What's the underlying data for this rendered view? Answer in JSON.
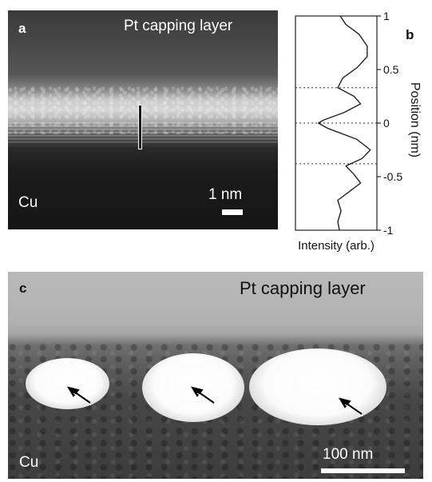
{
  "panel_a": {
    "label": "a",
    "top_text": "Pt capping layer",
    "bottom_text": "Cu",
    "scale_text": "1 nm"
  },
  "panel_b": {
    "label": "b",
    "xlabel": "Intensity (arb.)",
    "ylabel": "Position (nm)",
    "ticks": [
      "1",
      "0.5",
      "0",
      "-0.5",
      "-1"
    ],
    "chart_data": {
      "type": "line",
      "title": "",
      "xlabel": "Intensity (arb.)",
      "ylabel": "Position (nm)",
      "ylim": [
        -1,
        1
      ],
      "xlim": [
        0,
        1
      ],
      "y_ticks": [
        1,
        0.5,
        0,
        -0.5,
        -1
      ],
      "reference_lines_y": [
        0.33,
        0,
        -0.38
      ],
      "points": [
        {
          "y": 1.0,
          "x": 0.55
        },
        {
          "y": 0.92,
          "x": 0.62
        },
        {
          "y": 0.83,
          "x": 0.78
        },
        {
          "y": 0.72,
          "x": 0.88
        },
        {
          "y": 0.62,
          "x": 0.88
        },
        {
          "y": 0.52,
          "x": 0.76
        },
        {
          "y": 0.42,
          "x": 0.58
        },
        {
          "y": 0.33,
          "x": 0.52
        },
        {
          "y": 0.25,
          "x": 0.72
        },
        {
          "y": 0.18,
          "x": 0.8
        },
        {
          "y": 0.1,
          "x": 0.6
        },
        {
          "y": 0.03,
          "x": 0.35
        },
        {
          "y": 0.0,
          "x": 0.28
        },
        {
          "y": -0.05,
          "x": 0.4
        },
        {
          "y": -0.15,
          "x": 0.75
        },
        {
          "y": -0.25,
          "x": 0.92
        },
        {
          "y": -0.33,
          "x": 0.82
        },
        {
          "y": -0.4,
          "x": 0.62
        },
        {
          "y": -0.48,
          "x": 0.72
        },
        {
          "y": -0.56,
          "x": 0.8
        },
        {
          "y": -0.64,
          "x": 0.66
        },
        {
          "y": -0.72,
          "x": 0.52
        },
        {
          "y": -0.82,
          "x": 0.56
        },
        {
          "y": -0.92,
          "x": 0.52
        },
        {
          "y": -1.0,
          "x": 0.54
        }
      ]
    }
  },
  "panel_c": {
    "label": "c",
    "top_text": "Pt capping layer",
    "bottom_text": "Cu",
    "scale_text": "100 nm"
  }
}
